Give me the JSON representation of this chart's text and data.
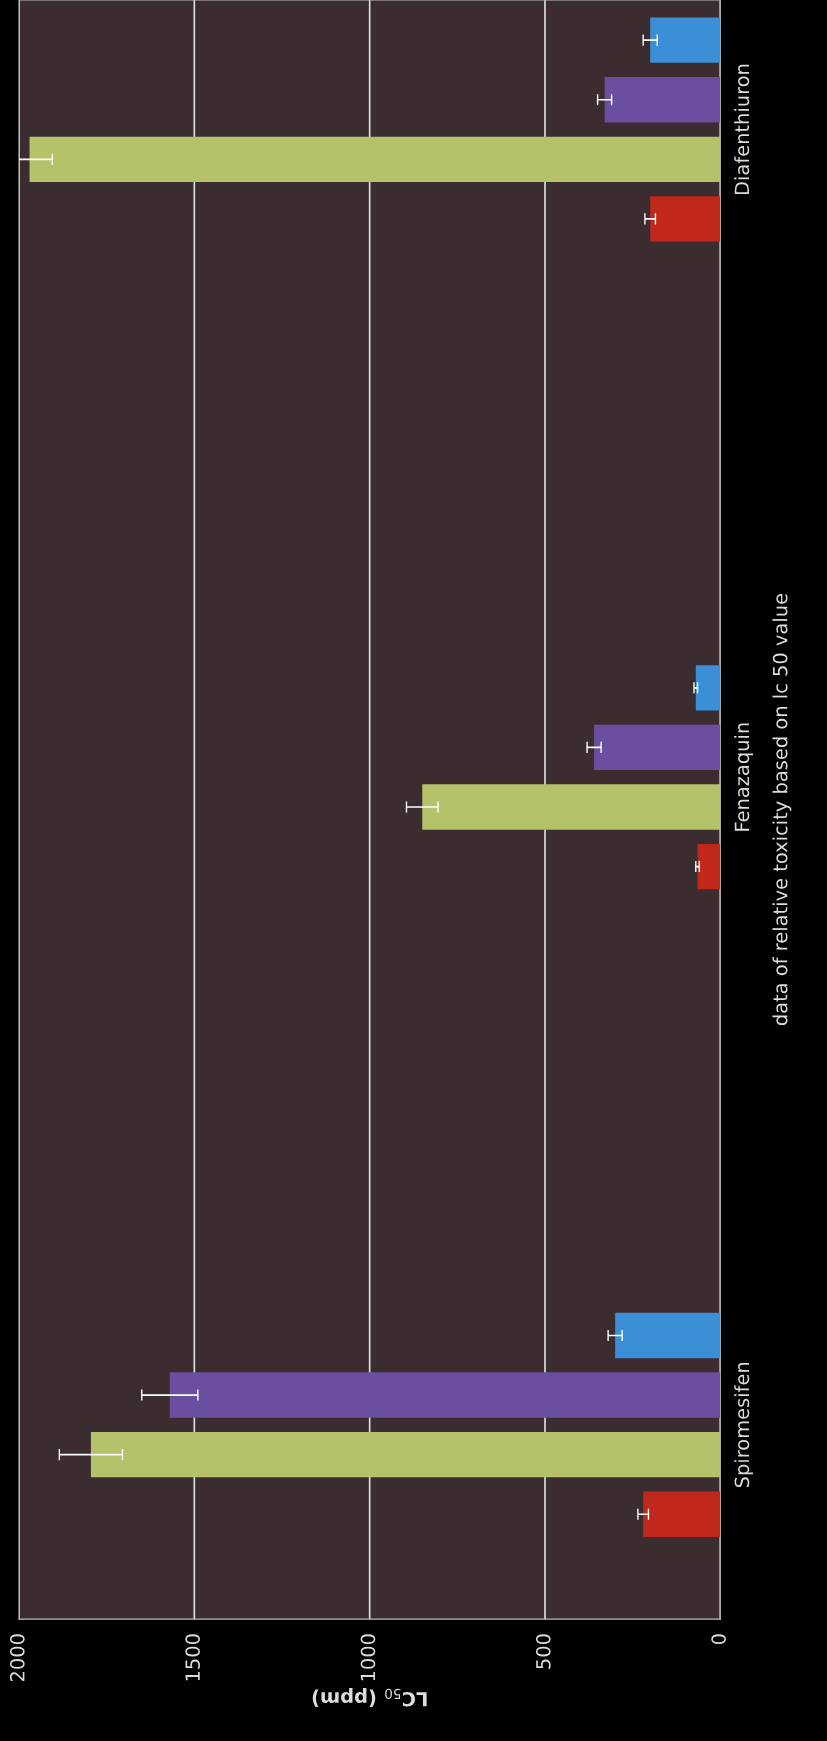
{
  "chart_data": {
    "type": "bar",
    "orientation": "horizontal",
    "xlabel": "LC$_{50}$ (ppm)",
    "ylabel": "data of relative toxicity based on lc 50 value",
    "categories": [
      "Diafenthiuron",
      "Fenazaquin",
      "Spiromesifen"
    ],
    "series": [
      {
        "color": "#c0281c",
        "values": [
          200,
          65,
          220
        ],
        "errors": [
          15,
          5,
          15
        ]
      },
      {
        "color": "#b5c26a",
        "values": [
          1970,
          850,
          1795
        ],
        "errors": [
          65,
          45,
          90
        ]
      },
      {
        "color": "#6a4fa0",
        "values": [
          330,
          360,
          1570
        ],
        "errors": [
          20,
          20,
          80
        ]
      },
      {
        "color": "#3a8fd6",
        "values": [
          200,
          70,
          300
        ],
        "errors": [
          20,
          5,
          20
        ]
      }
    ],
    "xlim": [
      2000,
      0
    ],
    "xticks": [
      0,
      500,
      1000,
      1500,
      2000
    ],
    "grid": "x",
    "legend": false
  }
}
